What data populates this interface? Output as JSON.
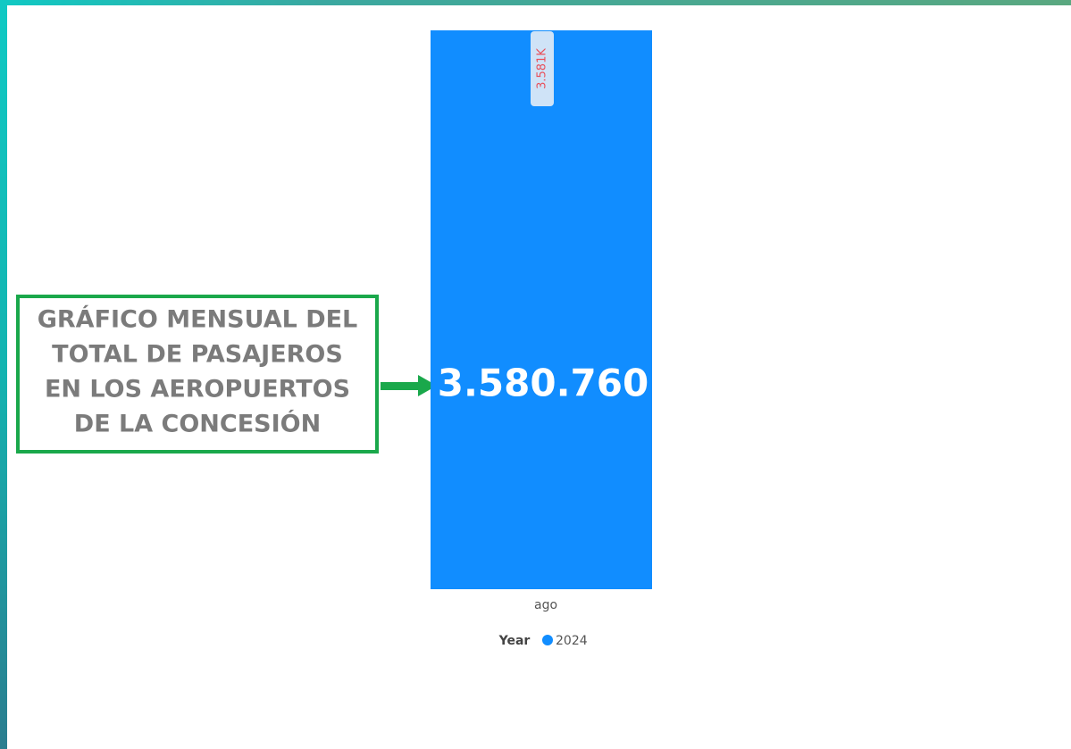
{
  "chart_data": {
    "type": "bar",
    "categories": [
      "ago"
    ],
    "series": [
      {
        "name": "2024",
        "color": "#118dff",
        "values": [
          3580760
        ],
        "value_labels": [
          "3.581K"
        ]
      }
    ],
    "ylim": [
      0,
      3580760
    ],
    "legend_title": "Year",
    "annotation": "3.580.760"
  },
  "callout": {
    "lines": [
      "GRÁFICO MENSUAL DEL",
      "TOTAL DE PASAJEROS",
      "EN LOS AEROPUERTOS",
      "DE LA CONCESIÓN"
    ]
  }
}
